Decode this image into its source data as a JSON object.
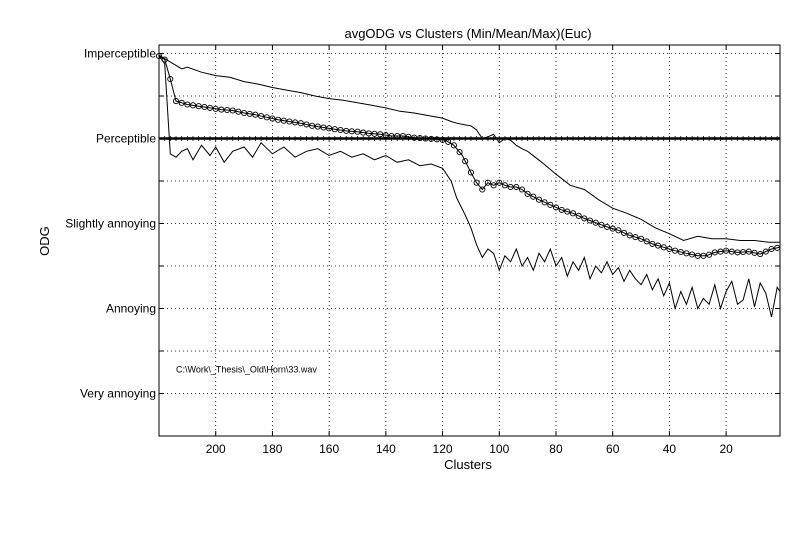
{
  "chart_data": {
    "type": "line",
    "title": "avgODG vs Clusters (Min/Mean/Max)(Euc)",
    "xlabel": "Clusters",
    "ylabel": "ODG",
    "xlim": [
      220,
      1
    ],
    "x_reversed": true,
    "ylim": [
      -4.5,
      0.1
    ],
    "x_ticks": [
      200,
      180,
      160,
      140,
      120,
      100,
      80,
      60,
      40,
      20
    ],
    "y_ticks": [
      {
        "value": 0,
        "label": "Imperceptible"
      },
      {
        "value": -1,
        "label": "Perceptible"
      },
      {
        "value": -2,
        "label": "Slightly annoying"
      },
      {
        "value": -3,
        "label": "Annoying"
      },
      {
        "value": -4,
        "label": "Very annoying"
      }
    ],
    "y_minor_ticks": [
      -0.5,
      -1.5,
      -2.5,
      -3.5
    ],
    "grid": true,
    "annotation": "C:\\Work\\_Thesis\\_Old\\Horn\\33.wav",
    "annotation_pos": {
      "x": 214,
      "y": -3.75
    },
    "reference_line": {
      "y": -1.0,
      "marker": "plus"
    },
    "series": [
      {
        "role": "max",
        "x": [
          220,
          217,
          215,
          212,
          210,
          205,
          200,
          195,
          190,
          185,
          180,
          175,
          170,
          165,
          160,
          155,
          150,
          145,
          140,
          135,
          130,
          125,
          120,
          117,
          115,
          112,
          110,
          108,
          106,
          104,
          102,
          100,
          98,
          96,
          94,
          92,
          90,
          85,
          80,
          75,
          70,
          65,
          60,
          55,
          50,
          45,
          40,
          35,
          30,
          25,
          20,
          15,
          10,
          5,
          1
        ],
        "y": [
          -0.02,
          -0.08,
          -0.12,
          -0.18,
          -0.16,
          -0.22,
          -0.26,
          -0.28,
          -0.33,
          -0.36,
          -0.4,
          -0.43,
          -0.46,
          -0.5,
          -0.53,
          -0.55,
          -0.58,
          -0.61,
          -0.64,
          -0.68,
          -0.7,
          -0.73,
          -0.76,
          -0.8,
          -0.82,
          -0.84,
          -0.85,
          -0.9,
          -1.0,
          -0.98,
          -0.95,
          -1.05,
          -1.0,
          -1.02,
          -1.08,
          -1.12,
          -1.15,
          -1.28,
          -1.42,
          -1.55,
          -1.6,
          -1.72,
          -1.82,
          -1.88,
          -1.95,
          -2.05,
          -2.12,
          -2.2,
          -2.15,
          -2.18,
          -2.18,
          -2.2,
          -2.2,
          -2.22,
          -2.22
        ]
      },
      {
        "role": "mean",
        "x": [
          220,
          218,
          216,
          214,
          212,
          210,
          206,
          202,
          198,
          194,
          190,
          186,
          182,
          178,
          174,
          170,
          166,
          162,
          158,
          154,
          150,
          146,
          142,
          138,
          134,
          130,
          126,
          122,
          119,
          116,
          113,
          110,
          108,
          106,
          104,
          102,
          100,
          98,
          96,
          94,
          92,
          90,
          86,
          82,
          78,
          74,
          70,
          66,
          62,
          58,
          54,
          50,
          46,
          42,
          38,
          34,
          30,
          27,
          24,
          20,
          16,
          12,
          8,
          4,
          1
        ],
        "y": [
          -0.03,
          -0.07,
          -0.3,
          -0.56,
          -0.58,
          -0.6,
          -0.62,
          -0.64,
          -0.66,
          -0.67,
          -0.7,
          -0.72,
          -0.75,
          -0.78,
          -0.8,
          -0.82,
          -0.85,
          -0.87,
          -0.89,
          -0.91,
          -0.92,
          -0.94,
          -0.95,
          -0.97,
          -0.97,
          -0.99,
          -1.0,
          -1.01,
          -1.02,
          -1.08,
          -1.2,
          -1.4,
          -1.52,
          -1.6,
          -1.52,
          -1.55,
          -1.52,
          -1.55,
          -1.57,
          -1.57,
          -1.6,
          -1.65,
          -1.72,
          -1.78,
          -1.84,
          -1.88,
          -1.94,
          -1.99,
          -2.04,
          -2.08,
          -2.14,
          -2.18,
          -2.24,
          -2.28,
          -2.32,
          -2.35,
          -2.38,
          -2.38,
          -2.34,
          -2.32,
          -2.34,
          -2.33,
          -2.36,
          -2.3,
          -2.28
        ]
      },
      {
        "role": "min",
        "x": [
          220,
          218,
          216,
          214,
          212,
          210,
          208,
          205,
          202,
          200,
          197,
          194,
          190,
          187,
          184,
          180,
          176,
          172,
          168,
          164,
          160,
          156,
          152,
          148,
          144,
          140,
          136,
          132,
          128,
          124,
          120,
          117,
          115,
          112,
          110,
          108,
          106,
          104,
          102,
          100,
          98,
          96,
          94,
          92,
          90,
          88,
          86,
          84,
          82,
          80,
          78,
          76,
          74,
          72,
          70,
          68,
          66,
          64,
          62,
          60,
          58,
          56,
          54,
          52,
          50,
          48,
          46,
          44,
          42,
          40,
          38,
          36,
          34,
          32,
          30,
          28,
          26,
          24,
          22,
          20,
          18,
          16,
          14,
          12,
          10,
          8,
          6,
          4,
          2,
          1
        ],
        "y": [
          -0.03,
          -0.12,
          -1.18,
          -1.22,
          -1.15,
          -1.12,
          -1.25,
          -1.08,
          -1.2,
          -1.1,
          -1.28,
          -1.15,
          -1.1,
          -1.22,
          -1.05,
          -1.18,
          -1.1,
          -1.22,
          -1.15,
          -1.12,
          -1.2,
          -1.15,
          -1.22,
          -1.18,
          -1.25,
          -1.2,
          -1.28,
          -1.25,
          -1.32,
          -1.3,
          -1.35,
          -1.5,
          -1.7,
          -1.9,
          -2.05,
          -2.25,
          -2.4,
          -2.3,
          -2.35,
          -2.55,
          -2.38,
          -2.45,
          -2.3,
          -2.5,
          -2.4,
          -2.55,
          -2.35,
          -2.45,
          -2.3,
          -2.5,
          -2.4,
          -2.62,
          -2.45,
          -2.55,
          -2.4,
          -2.65,
          -2.5,
          -2.58,
          -2.45,
          -2.6,
          -2.52,
          -2.68,
          -2.55,
          -2.65,
          -2.72,
          -2.6,
          -2.78,
          -2.65,
          -2.85,
          -2.7,
          -3.0,
          -2.8,
          -2.95,
          -2.75,
          -3.0,
          -2.88,
          -2.95,
          -2.72,
          -3.0,
          -2.8,
          -2.68,
          -2.95,
          -2.9,
          -2.65,
          -2.98,
          -2.7,
          -2.82,
          -3.1,
          -2.75,
          -2.8
        ]
      }
    ]
  }
}
